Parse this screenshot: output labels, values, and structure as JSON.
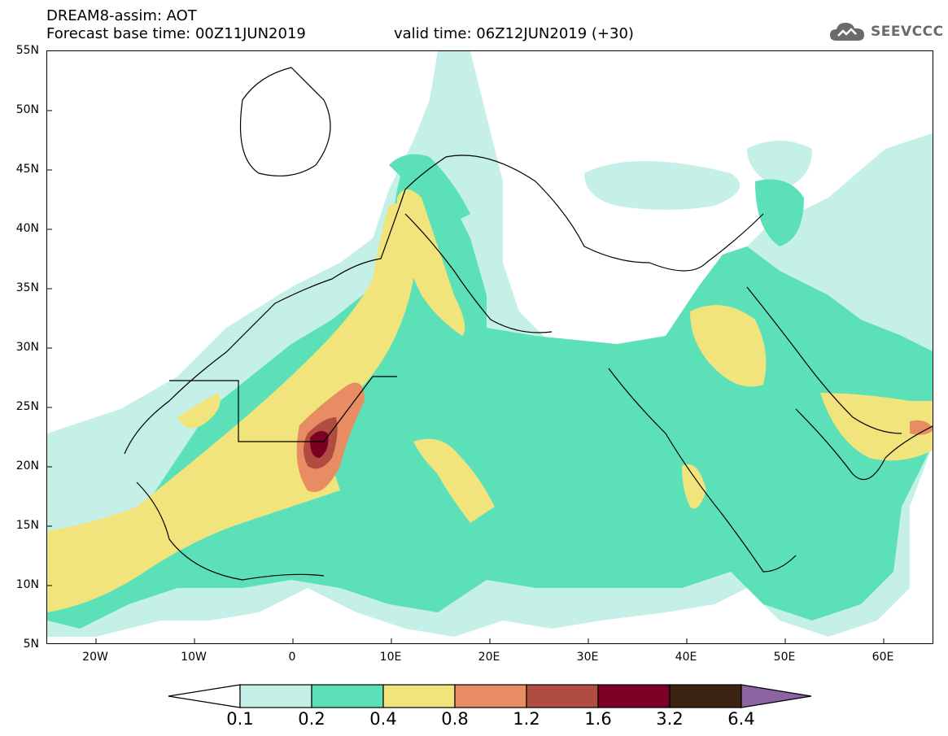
{
  "header": {
    "title_line1": "DREAM8-assim: AOT",
    "base_time": "Forecast base time: 00Z11JUN2019",
    "valid_time": "valid time: 06Z12JUN2019 (+30)"
  },
  "logo": {
    "text": "SEEVCCC",
    "icon": "cloud-icon"
  },
  "map": {
    "lat_labels": [
      "55N",
      "50N",
      "45N",
      "40N",
      "35N",
      "30N",
      "25N",
      "20N",
      "15N",
      "10N",
      "5N"
    ],
    "lon_labels": [
      "20W",
      "10W",
      "0",
      "10E",
      "20E",
      "30E",
      "40E",
      "50E",
      "60E"
    ],
    "lon_range": [
      -25,
      65
    ],
    "lat_range": [
      5,
      55
    ]
  },
  "colorbar": {
    "labels": [
      "0.1",
      "0.2",
      "0.4",
      "0.8",
      "1.2",
      "1.6",
      "3.2",
      "6.4"
    ],
    "colors": {
      "below": "#ffffff",
      "c1": "#c4f0e8",
      "c2": "#5ce0b8",
      "c3": "#f2e47c",
      "c4": "#e88c64",
      "c5": "#b04c40",
      "c6": "#7c0024",
      "c7": "#3c2414",
      "above": "#8c64a4"
    }
  }
}
